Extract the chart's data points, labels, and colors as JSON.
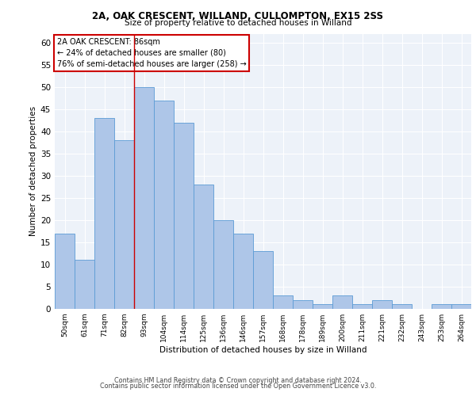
{
  "title1": "2A, OAK CRESCENT, WILLAND, CULLOMPTON, EX15 2SS",
  "title2": "Size of property relative to detached houses in Willand",
  "xlabel": "Distribution of detached houses by size in Willand",
  "ylabel": "Number of detached properties",
  "categories": [
    "50sqm",
    "61sqm",
    "71sqm",
    "82sqm",
    "93sqm",
    "104sqm",
    "114sqm",
    "125sqm",
    "136sqm",
    "146sqm",
    "157sqm",
    "168sqm",
    "178sqm",
    "189sqm",
    "200sqm",
    "211sqm",
    "221sqm",
    "232sqm",
    "243sqm",
    "253sqm",
    "264sqm"
  ],
  "values": [
    17,
    11,
    43,
    38,
    50,
    47,
    42,
    28,
    20,
    17,
    13,
    3,
    2,
    1,
    3,
    1,
    2,
    1,
    0,
    1,
    1
  ],
  "bar_color": "#aec6e8",
  "bar_edge_color": "#5b9bd5",
  "vline_x": 3.5,
  "vline_color": "#cc0000",
  "annotation_text": "2A OAK CRESCENT: 86sqm\n← 24% of detached houses are smaller (80)\n76% of semi-detached houses are larger (258) →",
  "annotation_box_color": "white",
  "annotation_box_edge": "#cc0000",
  "ylim": [
    0,
    62
  ],
  "yticks": [
    0,
    5,
    10,
    15,
    20,
    25,
    30,
    35,
    40,
    45,
    50,
    55,
    60
  ],
  "footer1": "Contains HM Land Registry data © Crown copyright and database right 2024.",
  "footer2": "Contains public sector information licensed under the Open Government Licence v3.0.",
  "bg_color": "#edf2f9",
  "grid_color": "white"
}
